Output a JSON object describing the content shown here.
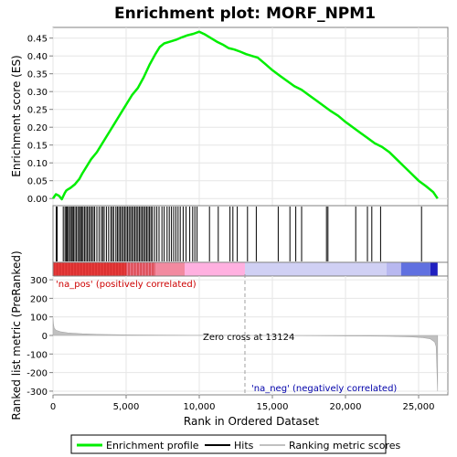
{
  "chart_data": [
    {
      "panel": "enrichment",
      "type": "line",
      "title": "Enrichment plot: MORF_NPM1",
      "ylabel": "Enrichment score (ES)",
      "xlim": [
        0,
        27000
      ],
      "ylim": [
        -0.02,
        0.48
      ],
      "yticks": [
        "0.00",
        "0.05",
        "0.10",
        "0.15",
        "0.20",
        "0.25",
        "0.30",
        "0.35",
        "0.40",
        "0.45"
      ],
      "series": [
        {
          "name": "Enrichment profile",
          "color": "#00ee00",
          "x": [
            0,
            200,
            400,
            600,
            800,
            900,
            1000,
            1200,
            1500,
            1800,
            2000,
            2300,
            2600,
            3000,
            3300,
            3600,
            3900,
            4200,
            4500,
            4800,
            5100,
            5400,
            5800,
            6200,
            6600,
            7000,
            7300,
            7600,
            8000,
            8400,
            8800,
            9200,
            9600,
            10000,
            10400,
            10800,
            11200,
            11600,
            12000,
            12400,
            12800,
            13200,
            13600,
            14000,
            14500,
            15000,
            15500,
            16000,
            16500,
            17000,
            17500,
            18000,
            18500,
            19000,
            19500,
            20000,
            20500,
            21000,
            21500,
            22000,
            22500,
            23000,
            23500,
            24000,
            24500,
            25000,
            25500,
            26000,
            26300
          ],
          "y": [
            0.0,
            0.012,
            0.008,
            -0.002,
            0.015,
            0.022,
            0.025,
            0.03,
            0.04,
            0.055,
            0.07,
            0.09,
            0.11,
            0.13,
            0.15,
            0.17,
            0.19,
            0.21,
            0.23,
            0.25,
            0.27,
            0.29,
            0.31,
            0.34,
            0.375,
            0.405,
            0.425,
            0.435,
            0.44,
            0.445,
            0.452,
            0.458,
            0.462,
            0.468,
            0.46,
            0.45,
            0.44,
            0.432,
            0.422,
            0.418,
            0.412,
            0.405,
            0.4,
            0.395,
            0.378,
            0.36,
            0.345,
            0.33,
            0.315,
            0.305,
            0.29,
            0.275,
            0.26,
            0.245,
            0.232,
            0.215,
            0.2,
            0.185,
            0.17,
            0.155,
            0.145,
            0.13,
            0.11,
            0.09,
            0.07,
            0.05,
            0.035,
            0.018,
            0.0
          ]
        }
      ]
    },
    {
      "panel": "hits",
      "type": "scatter",
      "series": [
        {
          "name": "Hits",
          "color": "#000000",
          "x": [
            220,
            280,
            700,
            820,
            900,
            980,
            1050,
            1150,
            1250,
            1320,
            1400,
            1500,
            1600,
            1700,
            1800,
            1880,
            1960,
            2050,
            2150,
            2250,
            2350,
            2450,
            2550,
            2650,
            2750,
            2850,
            3000,
            3150,
            3300,
            3400,
            3500,
            3650,
            3800,
            3950,
            4050,
            4150,
            4300,
            4400,
            4500,
            4600,
            4700,
            4800,
            4900,
            5000,
            5100,
            5200,
            5300,
            5400,
            5500,
            5600,
            5700,
            5800,
            5900,
            6000,
            6100,
            6200,
            6300,
            6400,
            6500,
            6600,
            6700,
            6800,
            6950,
            7100,
            7250,
            7450,
            7600,
            7800,
            7950,
            8100,
            8250,
            8400,
            8550,
            8700,
            8900,
            9100,
            9350,
            9550,
            9700,
            9850,
            10700,
            11300,
            12100,
            12300,
            12600,
            13300,
            13900,
            15400,
            16200,
            16600,
            17000,
            18700,
            18800,
            20700,
            21500,
            21800,
            22400,
            25200
          ]
        }
      ]
    },
    {
      "panel": "ranked",
      "type": "area",
      "ylabel": "Ranked list metric (PreRanked)",
      "xlabel": "Rank in Ordered Dataset",
      "xlim": [
        0,
        27000
      ],
      "ylim": [
        -320,
        320
      ],
      "yticks": [
        "-300",
        "-200",
        "-100",
        "0",
        "100",
        "200",
        "300"
      ],
      "xticks": [
        "0",
        "5,000",
        "10,000",
        "15,000",
        "20,000",
        "25,000"
      ],
      "zero_cross": 13124,
      "series": [
        {
          "name": "Ranking metric scores",
          "color": "#c0c0c0",
          "x": [
            0,
            30,
            80,
            200,
            500,
            1000,
            2000,
            3000,
            5000,
            8000,
            11000,
            13124,
            15000,
            18000,
            21000,
            23000,
            24500,
            25300,
            25800,
            26100,
            26200,
            26300
          ],
          "y": [
            95,
            60,
            40,
            28,
            20,
            14,
            9,
            6,
            3,
            1.5,
            0.5,
            0,
            -0.5,
            -1.5,
            -3,
            -5,
            -8,
            -12,
            -18,
            -35,
            -60,
            -300
          ]
        }
      ]
    }
  ],
  "labels": {
    "zero_cross": "Zero cross at 13124",
    "na_pos": "'na_pos' (positively correlated)",
    "na_neg": "'na_neg' (negatively correlated)"
  },
  "legend": [
    {
      "label": "Enrichment profile",
      "color": "#00ee00",
      "kind": "line"
    },
    {
      "label": "Hits",
      "color": "#000000",
      "kind": "line"
    },
    {
      "label": "Ranking metric scores",
      "color": "#c0c0c0",
      "kind": "line"
    }
  ],
  "colors": {
    "pos_bar": "#ee4444",
    "pink": "#ffb0e0",
    "lavender": "#b8b8f0",
    "blue_mid": "#6070e0",
    "neg_end": "#2020c0",
    "pos_text": "#cc0000",
    "neg_text": "#0000aa"
  }
}
